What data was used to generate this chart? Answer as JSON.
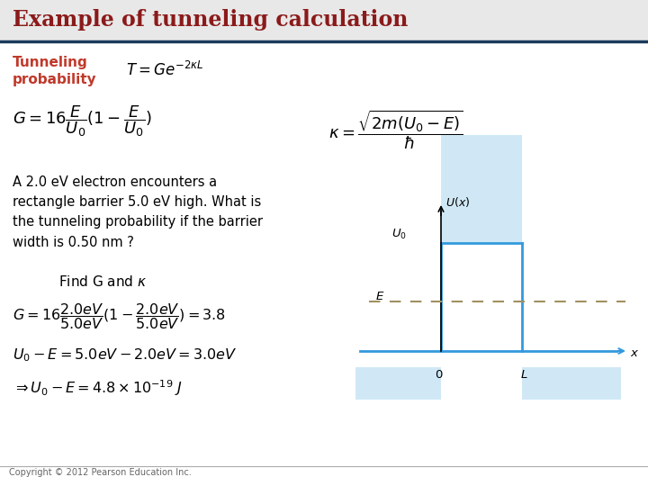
{
  "title": "Example of tunneling calculation",
  "title_color": "#8B1A1A",
  "title_bg": "#e8e8e8",
  "title_line_color": "#1a3a5c",
  "bg_color": "#ffffff",
  "tunneling_label": "Tunneling\nprobability",
  "tunneling_label_color": "#c0392b",
  "formula_T": "$T = Ge^{-2\\kappa L}$",
  "formula_G": "$G = 16\\dfrac{E}{U_0}(1 - \\dfrac{E}{U_0})$",
  "formula_kappa": "$\\kappa = \\dfrac{\\sqrt{2m(U_0 - E)}}{\\hbar}$",
  "problem_text": "A 2.0 eV electron encounters a\nrectangle barrier 5.0 eV high. What is\nthe tunneling probability if the barrier\nwidth is 0.50 nm ?",
  "find_text": "Find G and $\\kappa$",
  "formula_G_calc": "$G = 16\\dfrac{2.0eV}{5.0eV}(1 - \\dfrac{2.0eV}{5.0eV}) = 3.8$",
  "formula_U0E": "$U_0 - E = 5.0eV - 2.0eV = 3.0eV$",
  "formula_result": "$\\Rightarrow U_0 - E = 4.8 \\times 10^{-19}\\ J$",
  "copyright": "Copyright © 2012 Pearson Education Inc.",
  "diagram_barrier_color": "#3399dd",
  "diagram_fill_color": "#d0e8f5",
  "diagram_axis_color": "#3399dd",
  "diagram_dashed_color": "#a09060"
}
